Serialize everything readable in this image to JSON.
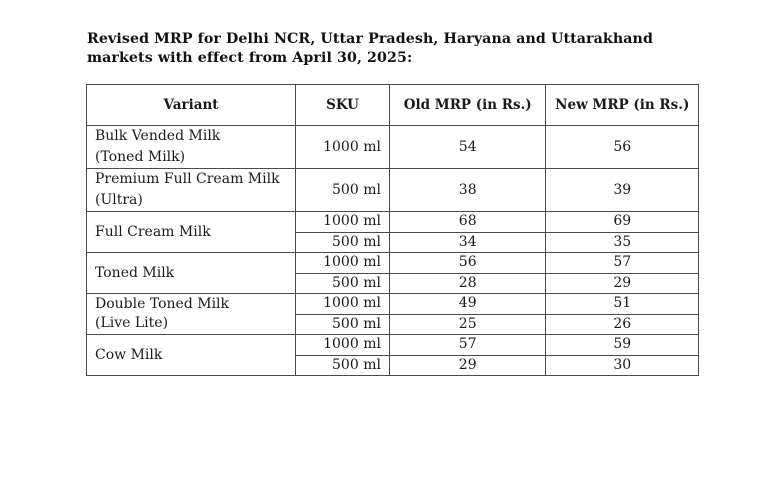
{
  "title": "Revised MRP for Delhi NCR, Uttar Pradesh, Haryana and Uttarakhand markets with effect from April 30, 2025:",
  "table": {
    "headers": [
      "Variant",
      "SKU",
      "Old MRP (in Rs.)",
      "New MRP (in Rs.)"
    ],
    "rows": [
      {
        "variant_line1": "Bulk Vended Milk",
        "variant_line2": "(Toned Milk)",
        "skus": [
          {
            "sku": "1000 ml",
            "old": "54",
            "new": "56"
          }
        ]
      },
      {
        "variant_line1": "Premium Full Cream Milk",
        "variant_line2": "(Ultra)",
        "skus": [
          {
            "sku": "500 ml",
            "old": "38",
            "new": "39"
          }
        ]
      },
      {
        "variant_line1": "Full Cream Milk",
        "variant_line2": "",
        "skus": [
          {
            "sku": "1000 ml",
            "old": "68",
            "new": "69"
          },
          {
            "sku": "500 ml",
            "old": "34",
            "new": "35"
          }
        ]
      },
      {
        "variant_line1": "Toned Milk",
        "variant_line2": "",
        "skus": [
          {
            "sku": "1000 ml",
            "old": "56",
            "new": "57"
          },
          {
            "sku": "500 ml",
            "old": "28",
            "new": "29"
          }
        ]
      },
      {
        "variant_line1": "Double Toned Milk",
        "variant_line2": "(Live Lite)",
        "skus": [
          {
            "sku": "1000 ml",
            "old": "49",
            "new": "51"
          },
          {
            "sku": "500 ml",
            "old": "25",
            "new": "26"
          }
        ]
      },
      {
        "variant_line1": "Cow Milk",
        "variant_line2": "",
        "skus": [
          {
            "sku": "1000 ml",
            "old": "57",
            "new": "59"
          },
          {
            "sku": "500 ml",
            "old": "29",
            "new": "30"
          }
        ]
      }
    ]
  }
}
